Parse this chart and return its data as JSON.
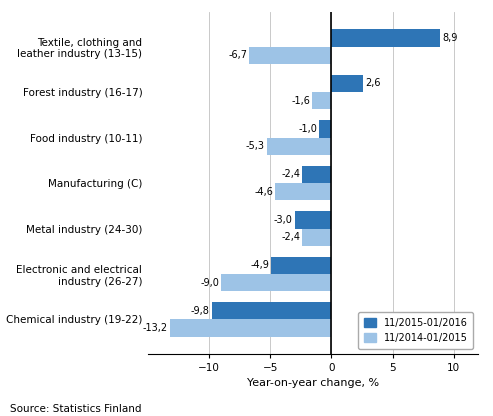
{
  "categories": [
    "Chemical industry (19-22)",
    "Electronic and electrical\nindustry (26-27)",
    "Metal industry (24-30)",
    "Manufacturing (C)",
    "Food industry (10-11)",
    "Forest industry (16-17)",
    "Textile, clothing and\nleather industry (13-15)"
  ],
  "series_2016": [
    -9.8,
    -4.9,
    -3.0,
    -2.4,
    -1.0,
    2.6,
    8.9
  ],
  "series_2015": [
    -13.2,
    -9.0,
    -2.4,
    -4.6,
    -5.3,
    -1.6,
    -6.7
  ],
  "color_2016": "#2e75b6",
  "color_2015": "#9dc3e6",
  "legend_labels": [
    "11/2015-01/2016",
    "11/2014-01/2015"
  ],
  "xlabel": "Year-on-year change, %",
  "source": "Source: Statistics Finland",
  "xlim": [
    -15,
    12
  ],
  "xticks": [
    -10,
    -5,
    0,
    5,
    10
  ],
  "label_fontsize": 7,
  "tick_fontsize": 7.5,
  "xlabel_fontsize": 8,
  "source_fontsize": 7.5
}
